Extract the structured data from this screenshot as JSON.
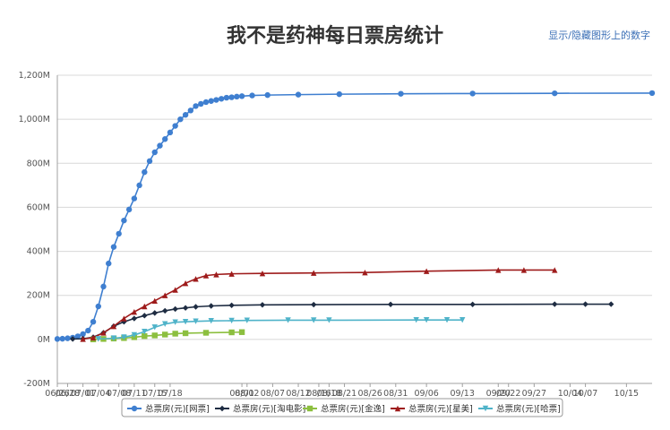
{
  "header": {
    "title": "我不是药神每日票房统计",
    "toggle_label": "显示/隐藏图形上的数字"
  },
  "chart_data": {
    "type": "line",
    "title": "我不是药神每日票房统计",
    "xlabel": "",
    "ylabel": "",
    "ylim": [
      -200,
      1200
    ],
    "y_unit": "M",
    "y_ticks": [
      "-200M",
      "0M",
      "200M",
      "400M",
      "600M",
      "800M",
      "1,000M",
      "1,200M"
    ],
    "x_ticks": [
      "06/26",
      "06/28",
      "07/01",
      "07/04",
      "07/08",
      "07/11",
      "07/15",
      "07/18",
      "08/01",
      "08/02",
      "08/07",
      "08/12",
      "08/16",
      "08/18",
      "08/21",
      "08/26",
      "08/31",
      "09/06",
      "09/13",
      "09/20",
      "09/22",
      "09/27",
      "10/04",
      "10/07",
      "10/15"
    ],
    "grid": true,
    "legend_position": "bottom",
    "colors": {
      "网票": "#3f7fd0",
      "淘电影": "#1e2c42",
      "金逸": "#8cbf3f",
      "星美": "#9e1b1b",
      "哈票": "#4fb3c9"
    },
    "series": [
      {
        "name": "总票房(元)[网票]",
        "marker": "circle",
        "color": "#3f7fd0",
        "x": [
          "06/26",
          "06/27",
          "06/28",
          "06/29",
          "06/30",
          "07/01",
          "07/02",
          "07/03",
          "07/04",
          "07/05",
          "07/06",
          "07/07",
          "07/08",
          "07/09",
          "07/10",
          "07/11",
          "07/12",
          "07/13",
          "07/14",
          "07/15",
          "07/16",
          "07/17",
          "07/18",
          "07/19",
          "07/20",
          "07/21",
          "07/22",
          "07/23",
          "07/24",
          "07/25",
          "07/26",
          "07/27",
          "07/28",
          "07/29",
          "07/30",
          "07/31",
          "08/01",
          "08/03",
          "08/06",
          "08/12",
          "08/20",
          "09/01",
          "09/15",
          "10/01",
          "10/20"
        ],
        "values": [
          2,
          3,
          5,
          8,
          14,
          24,
          40,
          80,
          150,
          240,
          345,
          420,
          480,
          540,
          590,
          640,
          700,
          760,
          810,
          850,
          880,
          910,
          940,
          970,
          1000,
          1020,
          1040,
          1060,
          1070,
          1078,
          1083,
          1088,
          1093,
          1098,
          1100,
          1103,
          1105,
          1108,
          1110,
          1112,
          1114,
          1116,
          1117,
          1118,
          1119
        ]
      },
      {
        "name": "总票房(元)[淘电影]",
        "marker": "diamond",
        "color": "#1e2c42",
        "x": [
          "06/29",
          "07/01",
          "07/03",
          "07/05",
          "07/07",
          "07/09",
          "07/11",
          "07/13",
          "07/15",
          "07/17",
          "07/19",
          "07/21",
          "07/23",
          "07/26",
          "07/30",
          "08/05",
          "08/15",
          "08/30",
          "09/15",
          "10/01",
          "10/07",
          "10/12"
        ],
        "values": [
          2,
          3,
          10,
          30,
          60,
          80,
          95,
          108,
          120,
          130,
          138,
          143,
          148,
          152,
          155,
          157,
          158,
          159,
          159,
          160,
          160,
          160
        ]
      },
      {
        "name": "总票房(元)[金逸]",
        "marker": "square",
        "color": "#8cbf3f",
        "x": [
          "07/03",
          "07/05",
          "07/07",
          "07/09",
          "07/11",
          "07/13",
          "07/15",
          "07/17",
          "07/19",
          "07/21",
          "07/25",
          "07/30",
          "08/01"
        ],
        "values": [
          0,
          2,
          4,
          6,
          10,
          15,
          18,
          22,
          26,
          28,
          30,
          32,
          33
        ]
      },
      {
        "name": "总票房(元)[星美]",
        "marker": "triangle",
        "color": "#9e1b1b",
        "x": [
          "07/01",
          "07/03",
          "07/05",
          "07/07",
          "07/09",
          "07/11",
          "07/13",
          "07/15",
          "07/17",
          "07/19",
          "07/21",
          "07/23",
          "07/25",
          "07/27",
          "07/30",
          "08/05",
          "08/15",
          "08/25",
          "09/06",
          "09/20",
          "09/25",
          "10/01"
        ],
        "values": [
          2,
          8,
          30,
          60,
          95,
          125,
          150,
          175,
          200,
          225,
          255,
          275,
          290,
          295,
          298,
          300,
          302,
          304,
          310,
          315,
          315,
          315
        ]
      },
      {
        "name": "总票房(元)[哈票]",
        "marker": "triangle-down",
        "color": "#4fb3c9",
        "x": [
          "07/04",
          "07/07",
          "07/09",
          "07/11",
          "07/13",
          "07/15",
          "07/17",
          "07/19",
          "07/21",
          "07/23",
          "07/26",
          "07/30",
          "08/02",
          "08/10",
          "08/15",
          "08/18",
          "09/04",
          "09/06",
          "09/10",
          "09/13"
        ],
        "values": [
          2,
          5,
          10,
          20,
          35,
          55,
          70,
          78,
          80,
          82,
          84,
          85,
          86,
          87,
          87,
          87,
          88,
          88,
          88,
          88
        ]
      }
    ]
  }
}
